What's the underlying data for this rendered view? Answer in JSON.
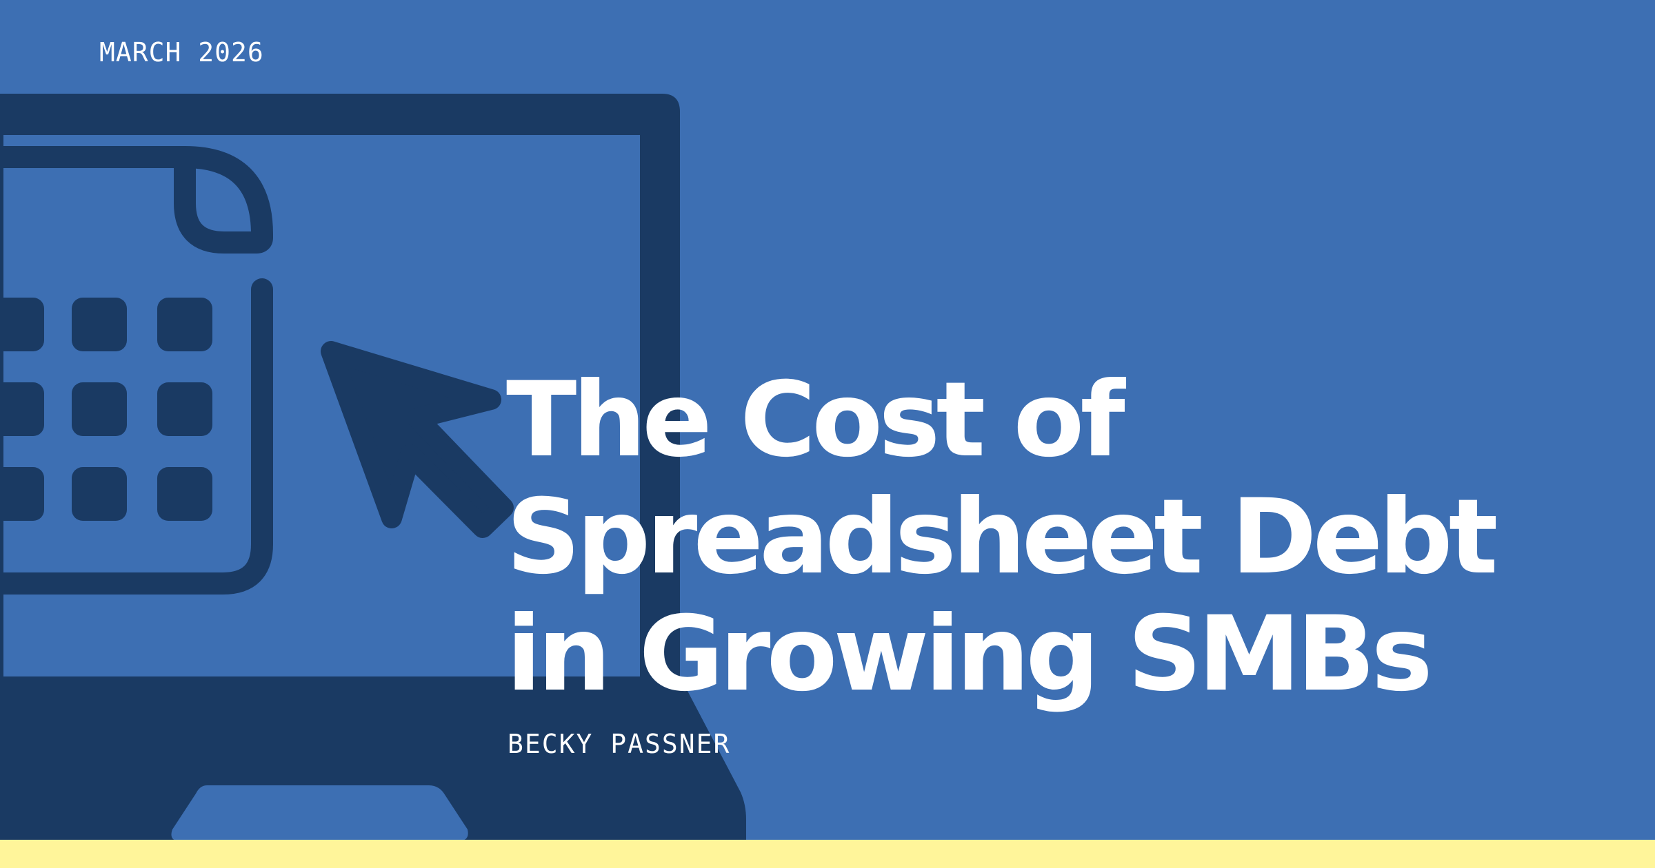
{
  "cover": {
    "date": "MARCH 2026",
    "title_lines": [
      "The Cost of",
      "Spreadsheet Debt",
      "in Growing SMBs"
    ],
    "author": "BECKY PASSNER"
  },
  "colors": {
    "background": "#3d6fb3",
    "illustration": "#1a3a63",
    "text": "#ffffff",
    "bottom_strip": "#fff59a"
  },
  "illustration": {
    "icons": [
      "laptop-icon",
      "spreadsheet-document-icon",
      "cursor-arrow-icon"
    ]
  }
}
